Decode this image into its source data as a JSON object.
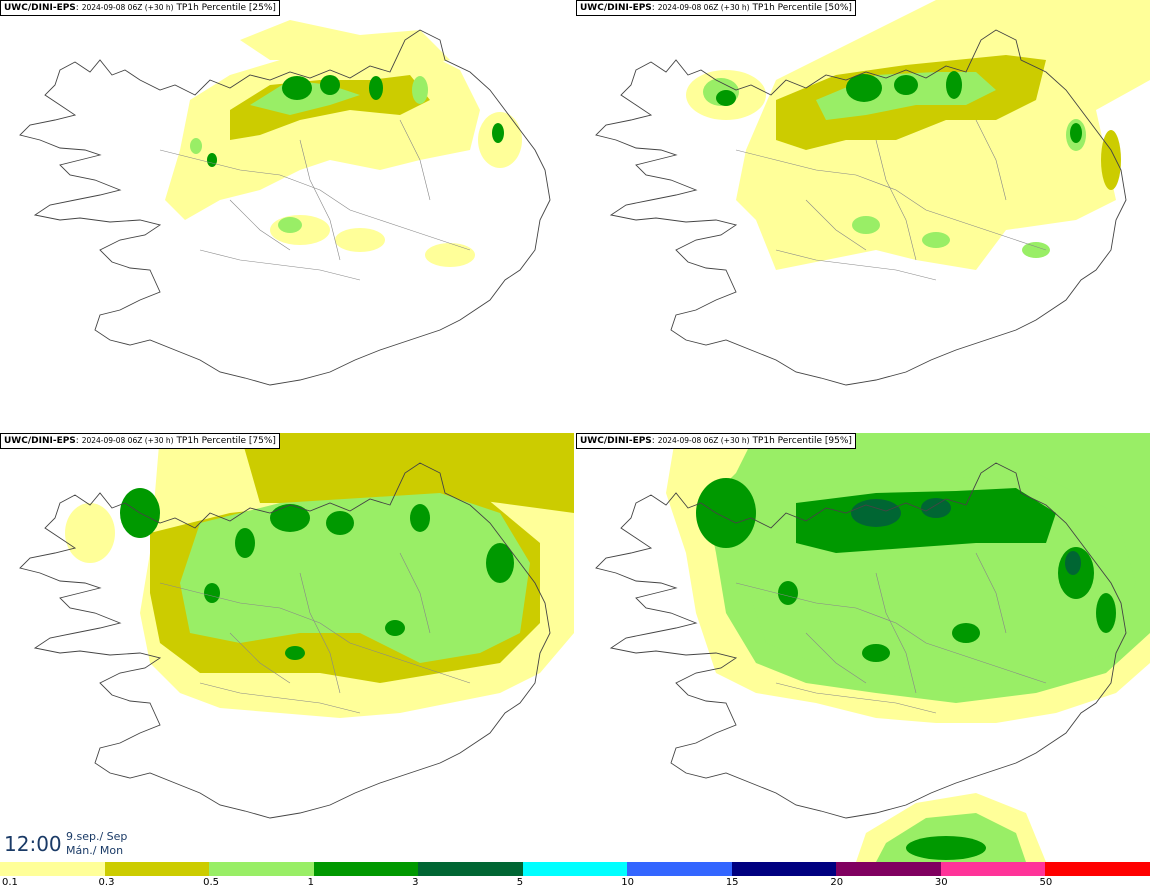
{
  "panels": [
    {
      "model": "UWC/DINI-EPS",
      "run": "2024-09-08 06Z (+30 h)",
      "title": "TP1h Percentile [25%]"
    },
    {
      "model": "UWC/DINI-EPS",
      "run": "2024-09-08 06Z (+30 h)",
      "title": "TP1h Percentile [50%]"
    },
    {
      "model": "UWC/DINI-EPS",
      "run": "2024-09-08 06Z (+30 h)",
      "title": "TP1h Percentile [75%]"
    },
    {
      "model": "UWC/DINI-EPS",
      "run": "2024-09-08 06Z (+30 h)",
      "title": "TP1h Percentile [95%]"
    }
  ],
  "valid_time": {
    "time": "12:00",
    "date_line1": "9.sep./ Sep",
    "date_line2": "Mán./ Mon"
  },
  "legend": {
    "levels": [
      "0.1",
      "0.3",
      "0.5",
      "1",
      "3",
      "5",
      "10",
      "15",
      "20",
      "30",
      "50"
    ],
    "colors": [
      "#ffff99",
      "#cccc00",
      "#99ee66",
      "#009900",
      "#006633",
      "#00ffff",
      "#3366ff",
      "#000080",
      "#800060",
      "#ff3399",
      "#ff0000"
    ]
  },
  "colors": {
    "p01": "#ffff99",
    "p03": "#cccc00",
    "p05": "#99ee66",
    "p1": "#009900",
    "p3": "#006633",
    "coast": "#444444"
  }
}
